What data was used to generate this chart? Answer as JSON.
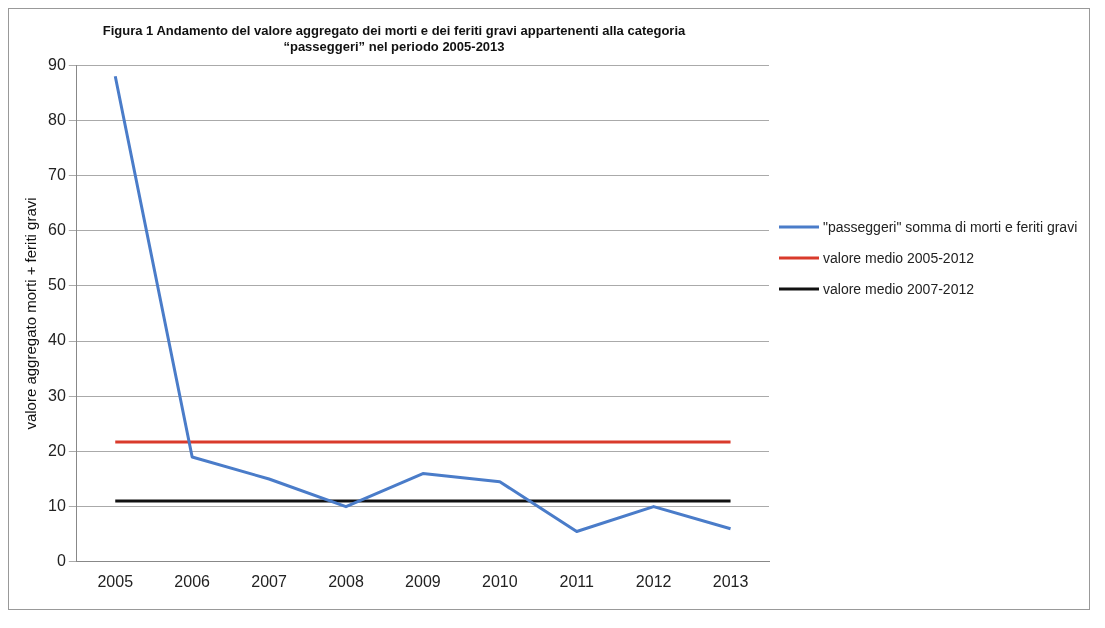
{
  "chart_data": {
    "type": "line",
    "title": "Figura 1 Andamento del valore aggregato dei morti e dei feriti gravi appartenenti alla categoria\n“passeggeri” nel periodo 2005-2013",
    "ylabel": "valore aggregato morti + feriti gravi",
    "categories": [
      "2005",
      "2006",
      "2007",
      "2008",
      "2009",
      "2010",
      "2011",
      "2012",
      "2013"
    ],
    "series": [
      {
        "name": "\"passeggeri\" somma di morti e feriti gravi",
        "color": "#4a7cc9",
        "values": [
          88,
          19,
          15,
          10,
          16,
          14.5,
          5.5,
          10,
          6
        ]
      },
      {
        "name": "valore medio 2005-2012",
        "color": "#d93a2b",
        "values": [
          21.7,
          21.7,
          21.7,
          21.7,
          21.7,
          21.7,
          21.7,
          21.7,
          21.7
        ]
      },
      {
        "name": "valore medio 2007-2012",
        "color": "#111111",
        "values": [
          11,
          11,
          11,
          11,
          11,
          11,
          11,
          11,
          11
        ]
      }
    ],
    "ylim": [
      0,
      90
    ],
    "yticks": [
      0,
      10,
      20,
      30,
      40,
      50,
      60,
      70,
      80,
      90
    ],
    "grid": "y",
    "legend": "right",
    "marker": "none",
    "line_style": "solid"
  }
}
